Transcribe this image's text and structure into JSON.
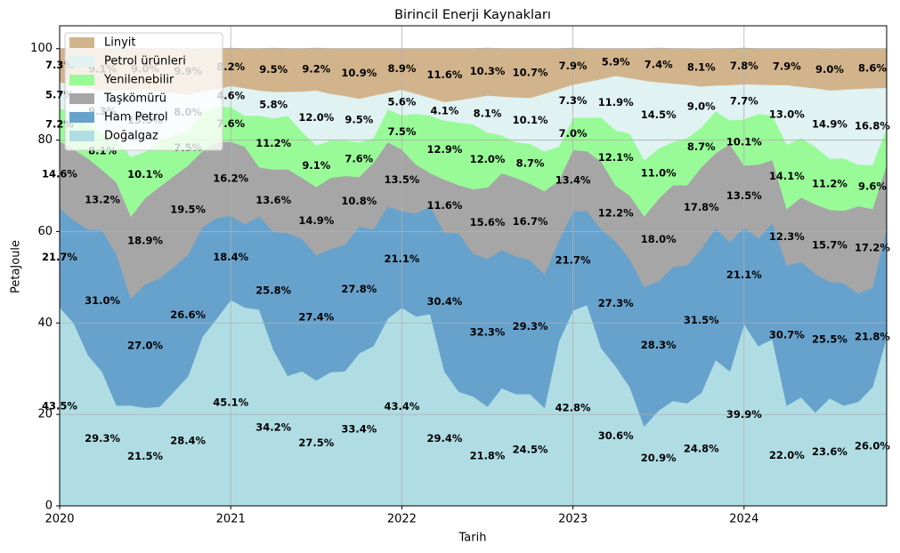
{
  "chart_data": {
    "type": "stacked_area",
    "title": "Birincil Enerji Kaynakları",
    "xlabel": "Tarih",
    "ylabel": "PetaJoule",
    "x": [
      "2020-01",
      "2020-02",
      "2020-03",
      "2020-04",
      "2020-05",
      "2020-06",
      "2020-07",
      "2020-08",
      "2020-09",
      "2020-10",
      "2020-11",
      "2020-12",
      "2021-01",
      "2021-02",
      "2021-03",
      "2021-04",
      "2021-05",
      "2021-06",
      "2021-07",
      "2021-08",
      "2021-09",
      "2021-10",
      "2021-11",
      "2021-12",
      "2022-01",
      "2022-02",
      "2022-03",
      "2022-04",
      "2022-05",
      "2022-06",
      "2022-07",
      "2022-08",
      "2022-09",
      "2022-10",
      "2022-11",
      "2022-12",
      "2023-01",
      "2023-02",
      "2023-03",
      "2023-04",
      "2023-05",
      "2023-06",
      "2023-07",
      "2023-08",
      "2023-09",
      "2023-10",
      "2023-11",
      "2023-12",
      "2024-01",
      "2024-02",
      "2024-03",
      "2024-04",
      "2024-05",
      "2024-06",
      "2024-07",
      "2024-08",
      "2024-09",
      "2024-10",
      "2024-11"
    ],
    "xlim": [
      "2020-01",
      "2024-11"
    ],
    "xticks": [
      {
        "value": "2020-01",
        "label": "2020"
      },
      {
        "value": "2021-01",
        "label": "2021"
      },
      {
        "value": "2022-01",
        "label": "2022"
      },
      {
        "value": "2023-01",
        "label": "2023"
      },
      {
        "value": "2024-01",
        "label": "2024"
      }
    ],
    "ylim": [
      0,
      105
    ],
    "yticks": [
      0,
      20,
      40,
      60,
      80,
      100
    ],
    "grid": true,
    "legend": "upper left",
    "series": [
      {
        "name": "Doğalgaz",
        "color": "#b0dde4",
        "values": [
          43.5,
          40,
          33,
          29.3,
          22,
          22,
          21.5,
          21.7,
          25,
          28.4,
          37,
          41,
          45.1,
          43.4,
          43,
          34.2,
          28.5,
          29.5,
          27.5,
          29.3,
          29.5,
          33.4,
          35,
          41,
          43.4,
          41.5,
          42,
          29.4,
          25,
          24,
          21.8,
          25.8,
          24.5,
          24.5,
          21.5,
          36,
          42.8,
          44,
          34.5,
          30.6,
          26,
          17.5,
          20.9,
          23,
          22.5,
          24.8,
          32,
          29.5,
          39.9,
          35,
          36.5,
          22,
          23.8,
          20.5,
          23.6,
          22,
          22.8,
          26,
          37
        ],
        "value_labels": [
          "43.5%",
          null,
          null,
          "29.3%",
          null,
          null,
          "21.5%",
          null,
          null,
          "28.4%",
          null,
          null,
          "45.1%",
          null,
          null,
          "34.2%",
          null,
          null,
          "27.5%",
          null,
          null,
          "33.4%",
          null,
          null,
          "43.4%",
          null,
          null,
          "29.4%",
          null,
          null,
          "21.8%",
          null,
          null,
          "24.5%",
          null,
          null,
          "42.8%",
          null,
          null,
          "30.6%",
          null,
          null,
          "20.9%",
          null,
          null,
          "24.8%",
          null,
          null,
          "39.9%",
          null,
          null,
          "22.0%",
          null,
          null,
          "23.6%",
          null,
          null,
          "26.0%",
          null
        ]
      },
      {
        "name": "Ham Petrol",
        "color": "#67a2cc",
        "values": [
          21.7,
          22.5,
          27.5,
          31.0,
          33,
          23.5,
          27.0,
          28.1,
          27.3,
          26.6,
          24,
          22,
          18.4,
          18.3,
          20.4,
          25.8,
          31.2,
          29,
          27.4,
          26.9,
          27.7,
          27.8,
          25.5,
          24.6,
          21.1,
          22.5,
          23.6,
          30.4,
          34.7,
          31.3,
          32.3,
          30.2,
          30.1,
          29.3,
          29.3,
          22,
          21.7,
          20.5,
          26,
          27.3,
          28,
          30.5,
          28.3,
          29.3,
          30.2,
          31.5,
          28.8,
          28.3,
          21.1,
          23.6,
          25.5,
          30.7,
          29.6,
          30.3,
          25.5,
          26.8,
          23.7,
          21.8,
          24
        ],
        "value_labels": [
          "21.7%",
          null,
          null,
          "31.0%",
          null,
          null,
          "27.0%",
          null,
          null,
          "26.6%",
          null,
          null,
          "18.4%",
          null,
          null,
          "25.8%",
          null,
          null,
          "27.4%",
          null,
          null,
          "27.8%",
          null,
          null,
          "21.1%",
          null,
          null,
          "30.4%",
          null,
          null,
          "32.3%",
          null,
          null,
          "29.3%",
          null,
          null,
          "21.7%",
          null,
          null,
          "27.3%",
          null,
          null,
          "28.3%",
          null,
          null,
          "31.5%",
          null,
          null,
          "21.1%",
          null,
          null,
          "30.7%",
          null,
          null,
          "25.5%",
          null,
          null,
          "21.8%",
          null
        ]
      },
      {
        "name": "Taşkömürü",
        "color": "#a6a6a6",
        "values": [
          14.6,
          15.5,
          15.5,
          13.2,
          15.8,
          17.9,
          18.9,
          20,
          19.9,
          19.5,
          16.6,
          16.6,
          16.2,
          16.9,
          10.7,
          13.6,
          14,
          13.3,
          14.9,
          15.6,
          15,
          10.8,
          14.6,
          14,
          13.5,
          10.7,
          7.2,
          11.6,
          10.5,
          14,
          15.6,
          16.8,
          17.2,
          16.7,
          18.1,
          13.2,
          13.4,
          13.1,
          14.8,
          12.2,
          13.9,
          15.4,
          18,
          17.9,
          17.5,
          17.8,
          16.4,
          21.4,
          13.5,
          16.1,
          13.7,
          12.3,
          14.1,
          15.2,
          15.7,
          15.8,
          19.1,
          17.2,
          13.7
        ],
        "value_labels": [
          "14.6%",
          null,
          null,
          "13.2%",
          null,
          null,
          "18.9%",
          null,
          null,
          "19.5%",
          null,
          null,
          "16.2%",
          null,
          null,
          "13.6%",
          null,
          null,
          "14.9%",
          null,
          null,
          "10.8%",
          null,
          null,
          "13.5%",
          null,
          null,
          "11.6%",
          null,
          null,
          "15.6%",
          null,
          null,
          "16.7%",
          null,
          null,
          "13.4%",
          null,
          null,
          "12.2%",
          null,
          null,
          "18.0%",
          null,
          null,
          "17.8%",
          null,
          null,
          "13.5%",
          null,
          null,
          "12.3%",
          null,
          null,
          "15.7%",
          null,
          null,
          "17.2%",
          null
        ]
      },
      {
        "name": "Yenilenebilir",
        "color": "#98fb98",
        "values": [
          7.2,
          8,
          7.5,
          8.1,
          9.5,
          13,
          10.1,
          10,
          9,
          7.5,
          8.5,
          7.8,
          7.6,
          6.8,
          11.3,
          11.2,
          11.7,
          10.1,
          9.1,
          8.2,
          7.8,
          7.6,
          5.4,
          7.2,
          7.5,
          11.1,
          12.6,
          12.9,
          13.7,
          14.2,
          12,
          8.3,
          7.8,
          8.7,
          8.7,
          7.4,
          7,
          7.4,
          9.7,
          12.1,
          13.6,
          12.3,
          11,
          9.4,
          10.3,
          8.7,
          9.2,
          5.2,
          10.1,
          11.1,
          9.7,
          14.1,
          13,
          12.6,
          11.2,
          11.5,
          9.1,
          9.6,
          8.2
        ],
        "value_labels": [
          "7.2%",
          null,
          null,
          "8.1%",
          null,
          null,
          "10.1%",
          null,
          null,
          "7.5%",
          null,
          null,
          "7.6%",
          null,
          null,
          "11.2%",
          null,
          null,
          "9.1%",
          null,
          null,
          "7.6%",
          null,
          null,
          "7.5%",
          null,
          null,
          "12.9%",
          null,
          null,
          "12.0%",
          null,
          null,
          "8.7%",
          null,
          null,
          "7.0%",
          null,
          null,
          "12.1%",
          null,
          null,
          "11.0%",
          null,
          null,
          "8.7%",
          null,
          null,
          "10.1%",
          null,
          null,
          "14.1%",
          null,
          null,
          "11.2%",
          null,
          null,
          "9.6%",
          null
        ]
      },
      {
        "name": "Petrol ürünleri",
        "color": "#e0f2f2",
        "values": [
          5.7,
          6.1,
          8,
          9.3,
          10.6,
          14.6,
          13.5,
          10.9,
          9.2,
          8,
          4.6,
          3.8,
          4.6,
          6,
          5.5,
          5.8,
          5.2,
          8.8,
          12,
          10.2,
          9.7,
          9.5,
          9.3,
          3.6,
          5.6,
          4.4,
          3.9,
          4.1,
          4.9,
          5.8,
          8.1,
          8.5,
          9.8,
          10.1,
          12.6,
          12.6,
          7.3,
          7.8,
          8.4,
          11.9,
          12.1,
          17.4,
          14.5,
          12.8,
          11.7,
          9,
          5.6,
          7.7,
          7.7,
          6.4,
          6.7,
          13,
          11.2,
          12.8,
          14.9,
          15,
          16.6,
          16.8,
          8.6
        ],
        "value_labels": [
          "5.7%",
          null,
          null,
          "9.3%",
          null,
          null,
          "13.5%",
          null,
          null,
          "8.0%",
          null,
          null,
          "4.6%",
          null,
          null,
          "5.8%",
          null,
          null,
          "12.0%",
          null,
          null,
          "9.5%",
          null,
          null,
          "5.6%",
          null,
          null,
          "4.1%",
          null,
          null,
          "8.1%",
          null,
          null,
          "10.1%",
          null,
          null,
          "7.3%",
          null,
          null,
          "11.9%",
          null,
          null,
          "14.5%",
          null,
          null,
          "9.0%",
          null,
          null,
          "7.7%",
          null,
          null,
          "13.0%",
          null,
          null,
          "14.9%",
          null,
          null,
          "16.8%",
          null
        ]
      },
      {
        "name": "Linyit",
        "color": "#d2b48c",
        "values": [
          7.3,
          7.9,
          8.5,
          9.1,
          9.1,
          9,
          9,
          9.3,
          9.6,
          9.9,
          9.3,
          8.8,
          8.2,
          8.6,
          9.1,
          9.5,
          9.4,
          9.3,
          9.2,
          9.8,
          10.3,
          10.9,
          10.2,
          9.6,
          8.9,
          9.8,
          10.7,
          11.6,
          11.2,
          10.7,
          10.3,
          10.4,
          10.6,
          10.7,
          9.8,
          8.8,
          7.9,
          7.2,
          6.6,
          5.9,
          6.4,
          6.9,
          7.4,
          7.6,
          7.8,
          8.1,
          8,
          7.9,
          7.8,
          7.8,
          7.9,
          7.9,
          8.3,
          8.6,
          9,
          8.9,
          8.7,
          8.6,
          8.5
        ],
        "value_labels": [
          "7.3%",
          null,
          null,
          "9.1%",
          null,
          null,
          "9.0%",
          null,
          null,
          "9.9%",
          null,
          null,
          "8.2%",
          null,
          null,
          "9.5%",
          null,
          null,
          "9.2%",
          null,
          null,
          "10.9%",
          null,
          null,
          "8.9%",
          null,
          null,
          "11.6%",
          null,
          null,
          "10.3%",
          null,
          null,
          "10.7%",
          null,
          null,
          "7.9%",
          null,
          null,
          "5.9%",
          null,
          null,
          "7.4%",
          null,
          null,
          "8.1%",
          null,
          null,
          "7.8%",
          null,
          null,
          "7.9%",
          null,
          null,
          "9.0%",
          null,
          null,
          "8.6%",
          null
        ]
      }
    ]
  }
}
